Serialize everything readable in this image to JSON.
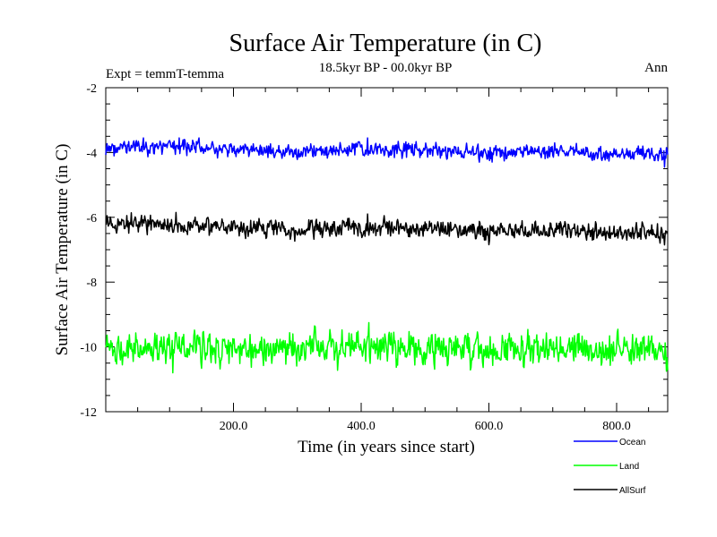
{
  "chart_data": {
    "type": "line",
    "title": "Surface Air Temperature (in C)",
    "subtitle": "18.5kyr BP - 00.0kyr BP",
    "left_note": "Expt = temmT-temma",
    "right_note": "Ann",
    "xlabel": "Time (in years since start)",
    "ylabel": "Surface Air Temperature (in C)",
    "xlim": [
      0,
      880
    ],
    "ylim": [
      -12,
      -2
    ],
    "x_ticks": [
      200,
      400,
      600,
      800
    ],
    "x_tick_labels": [
      "200.0",
      "400.0",
      "600.0",
      "800.0"
    ],
    "y_ticks": [
      -12,
      -10,
      -8,
      -6,
      -4,
      -2
    ],
    "y_tick_labels": [
      "-12",
      "-10",
      "-8",
      "-6",
      "-4",
      "-2"
    ],
    "grid": false,
    "series": [
      {
        "name": "Ocean",
        "color": "#0000ff",
        "mean": [
          [
            0,
            -3.85
          ],
          [
            100,
            -3.8
          ],
          [
            200,
            -3.9
          ],
          [
            300,
            -4.0
          ],
          [
            400,
            -3.9
          ],
          [
            500,
            -3.95
          ],
          [
            600,
            -4.0
          ],
          [
            700,
            -3.95
          ],
          [
            800,
            -4.05
          ],
          [
            880,
            -4.0
          ]
        ],
        "noise": 0.12,
        "extremes": [
          [
            115,
            -3.55
          ],
          [
            410,
            -3.55
          ],
          [
            875,
            -4.45
          ]
        ]
      },
      {
        "name": "Land",
        "color": "#00ff00",
        "mean": [
          [
            0,
            -10.0
          ],
          [
            100,
            -10.05
          ],
          [
            200,
            -10.05
          ],
          [
            300,
            -10.1
          ],
          [
            400,
            -10.0
          ],
          [
            500,
            -10.05
          ],
          [
            600,
            -10.15
          ],
          [
            700,
            -10.05
          ],
          [
            800,
            -10.05
          ],
          [
            880,
            -10.15
          ]
        ],
        "noise": 0.25,
        "extremes": [
          [
            412,
            -9.25
          ],
          [
            105,
            -10.8
          ],
          [
            878,
            -10.75
          ]
        ]
      },
      {
        "name": "AllSurf",
        "color": "#000000",
        "mean": [
          [
            0,
            -6.2
          ],
          [
            100,
            -6.2
          ],
          [
            200,
            -6.3
          ],
          [
            300,
            -6.4
          ],
          [
            400,
            -6.3
          ],
          [
            500,
            -6.35
          ],
          [
            600,
            -6.45
          ],
          [
            700,
            -6.4
          ],
          [
            800,
            -6.45
          ],
          [
            880,
            -6.5
          ]
        ],
        "noise": 0.14,
        "extremes": [
          [
            110,
            -5.85
          ],
          [
            410,
            -5.9
          ],
          [
            875,
            -6.85
          ]
        ]
      }
    ],
    "legend": {
      "placement": "bottom-right",
      "entries": [
        "Ocean",
        "Land",
        "AllSurf"
      ]
    }
  }
}
